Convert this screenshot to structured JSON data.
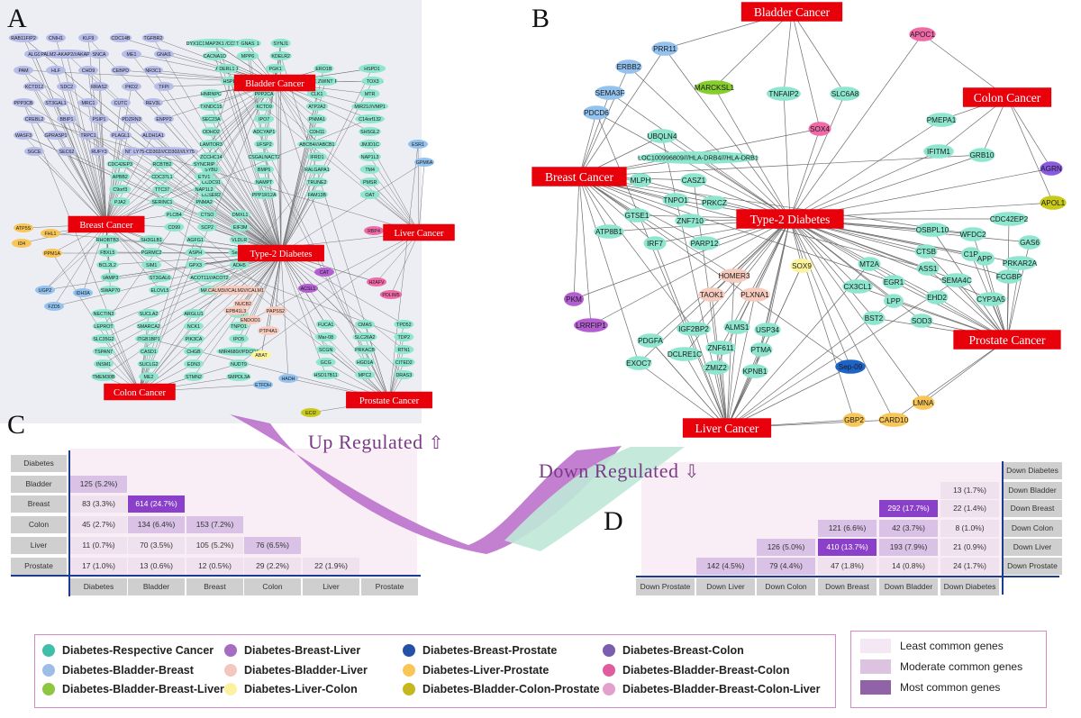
{
  "panels": {
    "a": "A",
    "b": "B",
    "c": "C",
    "d": "D"
  },
  "regulation": {
    "up": "Up Regulated",
    "down": "Down Regulated"
  },
  "colors": {
    "cancer_box": "#e8000b",
    "teal": "#8ee6cf",
    "lavender": "#b7bde8",
    "blue": "#93c2ef",
    "green": "#86cd2e",
    "purple": "#b45fd1",
    "pink": "#f06aa8",
    "peach": "#f7cbbe",
    "yellow": "#fdf39a",
    "orange": "#f7c657",
    "olive": "#c9c91a",
    "violet": "#8a5ae0",
    "darkblue": "#1d63c8"
  },
  "network_a": {
    "cancers": [
      "Bladder Cancer",
      "Breast Cancer",
      "Type-2 Diabetes",
      "Liver Cancer",
      "Colon Cancer",
      "Prostate Cancer"
    ],
    "genes_teal": [
      "DYX1C1-CCPG1///CCPG1",
      "TOR1AIP1",
      "EDI",
      "PAPOLA",
      "KLHL41",
      "NBEA",
      "ARHGEF9",
      "CPE",
      "CRY1",
      "C11orf58",
      "NFIL3",
      "FBXO3",
      "DCUN1D4",
      "ARMCX1",
      "CD200",
      "PPP2CA",
      "CLK1",
      "MTR",
      "TXNDC15",
      "KCTD9",
      "ATP2A2",
      "MIR21///VMP1",
      "SEC23A",
      "IPO7",
      "PNMA1",
      "C14orf132",
      "ODHO2",
      "ADCYAP1",
      "CDH11",
      "SHSGL2",
      "LAMTOR3",
      "UFSP2",
      "ABCB4///ABCB1",
      "JMJD1C",
      "ZCCHC14",
      "CSGALNACT2",
      "IFRD1",
      "NAP1L3",
      "SYBU",
      "BMP5",
      "RALGAPA1",
      "TM4",
      "CCDC91",
      "NAMPT",
      "TRUNE2",
      "PMSR",
      "CCSER2",
      "PPP1R12A",
      "FAM13B",
      "OAT",
      "CDC42EP3",
      "RCBTB2",
      "SYNCRIP",
      "APBB2",
      "CDC37L1",
      "ETV1",
      "C9orf3",
      "TTC37",
      "NAP1L2",
      "PJA2",
      "SERINC1",
      "PNMA2",
      "PLCB4",
      "CTSO",
      "DMXL1",
      "CD99",
      "SCP2",
      "EIF3M",
      "RHOBTB3",
      "SH3GLB1",
      "AGFG1",
      "VLDLR",
      "FBXL5",
      "PGRMC2",
      "ASPH",
      "Sep-10",
      "BCL2L2",
      "SIM1",
      "GPX3",
      "ADH5",
      "VAMP3",
      "ST3GAL6",
      "ACOT11///ACOT2",
      "SWAP70",
      "ELOVL5",
      "MANIA1",
      "NECTIN3",
      "SUCLA2",
      "ARGLU1",
      "NEK7",
      "LEPROT",
      "SMARCA2",
      "NCK1",
      "TNPO1",
      "SLC35G2",
      "ITGB1BP1",
      "PIK3CA",
      "IPO5",
      "TSPAN7",
      "CASD1",
      "CHGB",
      "MIR4680///PDCD4",
      "INSM1",
      "SUCLG2",
      "EDN3",
      "NUDT9",
      "TMEM30B",
      "ME2",
      "STMN2",
      "SMPDL3A",
      "FUCA1",
      "CMAS",
      "TPD52",
      "Mar-08",
      "SLC26A2",
      "TDP2",
      "SCGN",
      "PRKACB",
      "RTN1",
      "GCG",
      "HGD1A",
      "CITED2",
      "HSD17B11",
      "MPC2",
      "DRAS3",
      "MAP2K1",
      "GNAS",
      "SYNJ1",
      "CACNA1D",
      "MPP6",
      "KDELR2",
      "DERL1",
      "PGK1",
      "ERO1B",
      "HSPD1",
      "HSPE1",
      "OGT",
      "ZWINT",
      "TOX3",
      "HNRNPC"
    ],
    "genes_lavender": [
      "RAB11FIP2",
      "CNIH1",
      "KLF9",
      "CDC14B",
      "TGFBR2",
      "ALG9",
      "PALM2-AKAP2///AKAP2",
      "SNCA",
      "ME1",
      "GNAI1",
      "PAM",
      "HLF",
      "CHD9",
      "CEBPD",
      "NR3C1",
      "KCTD12",
      "SDC2",
      "RRAS2",
      "PKD2",
      "TFPI",
      "PPP3CB",
      "ST3GAL1",
      "MRC1",
      "CUTC",
      "REV3L",
      "CREBL2",
      "BBIP1",
      "PSIP1",
      "PDZRN3",
      "ENPP2",
      "WASF3",
      "GPRASP1",
      "TRPC1",
      "PLAGL1",
      "ALDH1A1",
      "SGCE",
      "SEC62",
      "RUFY3",
      "NRP1",
      "LY75-CD302///CD302///LY75"
    ],
    "genes_blue": [
      "UGP2",
      "IDH3A",
      "FZD5",
      "ETFDH",
      "HADH",
      "ESR1",
      "GPM6A"
    ],
    "genes_orange": [
      "ATP5S",
      "FHL1",
      "ID4",
      "PPM1A"
    ],
    "genes_peach": [
      "CALM3///CALM2///CALM1",
      "NUCB2",
      "EPB41L3",
      "PAPSS2",
      "ENDOD1",
      "PTP4A1"
    ],
    "genes_purple": [
      "CAT",
      "ACSL1"
    ],
    "genes_pink": [
      "RBP4",
      "H2AFV",
      "PDLIM5"
    ],
    "genes_yellow": [
      "ABAT"
    ],
    "genes_olive": [
      "ECI2"
    ]
  },
  "network_b": {
    "cancers": [
      "Bladder Cancer",
      "Colon Cancer",
      "Breast Cancer",
      "Type-2 Diabetes",
      "Prostate Cancer",
      "Liver Cancer"
    ],
    "genes": {
      "blue": [
        "PRR11",
        "ERBB2",
        "SEMA3F",
        "PDCD6"
      ],
      "green": [
        "MARCKSL1"
      ],
      "pink": [
        "APOC1",
        "SOX4"
      ],
      "teal": [
        "TNFAIP2",
        "SLC6A8",
        "UBQLN4",
        "PMEPA1",
        "IFITM1",
        "GRB10",
        "LOC100996809///HLA-DRB4///HLA-DRB1",
        "MLPH",
        "CASZ1",
        "TNPO1",
        "PRKCZ",
        "GTSE1",
        "ZNF710",
        "ATP8B1",
        "IRF7",
        "PARP12",
        "OSBPL10",
        "WFDC2",
        "CDC42EP2",
        "GAS6",
        "MT2A",
        "CTSB",
        "C1R",
        "ASS1",
        "APP",
        "PRKAR2A",
        "SEMA4C",
        "FCGBP",
        "CX3CL1",
        "EGR1",
        "EHD2",
        "CYP3A5",
        "LPP",
        "BST2",
        "SOD3",
        "IGF2BP2",
        "ALMS1",
        "USP34",
        "PDGFA",
        "ZNF611",
        "PTMA",
        "EXOC7",
        "DCLRE1C",
        "ZMIZ2",
        "KPNB1"
      ],
      "violet": [
        "AGRN"
      ],
      "olive": [
        "APOL1"
      ],
      "peach": [
        "HOMER3",
        "TAOK1",
        "PLXNA1"
      ],
      "yellow": [
        "SOX9"
      ],
      "purple": [
        "PKM",
        "LRRFIP1"
      ],
      "darkblue": [
        "Sep-09"
      ],
      "orange": [
        "LMNA",
        "GBP2",
        "CARD10"
      ]
    }
  },
  "heatmap_c": {
    "rows": [
      "Diabetes",
      "Bladder",
      "Breast",
      "Colon",
      "Liver",
      "Prostate"
    ],
    "cols": [
      "Diabetes",
      "Bladder",
      "Breast",
      "Colon",
      "Liver",
      "Prostate"
    ],
    "cells": [
      [],
      [
        "125 (5.2%)"
      ],
      [
        "83 (3.3%)",
        "614 (24.7%)"
      ],
      [
        "45 (2.7%)",
        "134 (6.4%)",
        "153 (7.2%)"
      ],
      [
        "11 (0.7%)",
        "70 (3.5%)",
        "105 (5.2%)",
        "76 (6.5%)"
      ],
      [
        "17 (1.0%)",
        "13 (0.6%)",
        "12 (0.5%)",
        "29 (2.2%)",
        "22 (1.9%)"
      ]
    ],
    "levels": [
      [],
      [
        2
      ],
      [
        1,
        3
      ],
      [
        1,
        2,
        2
      ],
      [
        1,
        1,
        1,
        2
      ],
      [
        1,
        1,
        1,
        1,
        1
      ]
    ]
  },
  "heatmap_d": {
    "rows": [
      "Down Diabetes",
      "Down Bladder",
      "Down Breast",
      "Down Colon",
      "Down Liver",
      "Down Prostate"
    ],
    "cols": [
      "Down Prostate",
      "Down Liver",
      "Down Colon",
      "Down Breast",
      "Down Bladder",
      "Down Diabetes"
    ],
    "cells": [
      [],
      [
        "13 (1.7%)"
      ],
      [
        "292 (17.7%)",
        "22 (1.4%)"
      ],
      [
        "121 (6.6%)",
        "42 (3.7%)",
        "8 (1.0%)"
      ],
      [
        "126 (5.0%)",
        "410 (13.7%)",
        "193 (7.9%)",
        "21 (0.9%)"
      ],
      [
        "142 (4.5%)",
        "79 (4.4%)",
        "47 (1.8%)",
        "14 (0.8%)",
        "24 (1.7%)"
      ]
    ],
    "levels": [
      [],
      [
        1
      ],
      [
        3,
        1
      ],
      [
        2,
        2,
        1
      ],
      [
        2,
        3,
        2,
        1
      ],
      [
        2,
        2,
        1,
        1,
        1
      ]
    ]
  },
  "legend": {
    "items": [
      {
        "label": "Diabetes-Respective Cancer",
        "color": "#3fbfa9"
      },
      {
        "label": "Diabetes-Breast-Liver",
        "color": "#a56cc1"
      },
      {
        "label": "Diabetes-Breast-Prostate",
        "color": "#2450a8"
      },
      {
        "label": "Diabetes-Breast-Colon",
        "color": "#7a5cb0"
      },
      {
        "label": "Diabetes-Bladder-Breast",
        "color": "#9dbde8"
      },
      {
        "label": "Diabetes-Bladder-Liver",
        "color": "#f3c7bd"
      },
      {
        "label": "Diabetes-Liver-Prostate",
        "color": "#f7c657"
      },
      {
        "label": "Diabetes-Bladder-Breast-Colon",
        "color": "#e05c9e"
      },
      {
        "label": "Diabetes-Bladder-Breast-Liver",
        "color": "#8dc63f"
      },
      {
        "label": "Diabetes-Liver-Colon",
        "color": "#fdf0a0"
      },
      {
        "label": "Diabetes-Bladder-Colon-Prostate",
        "color": "#c6b81c"
      },
      {
        "label": "Diabetes-Bladder-Breast-Colon-Liver",
        "color": "#e3a0cc"
      }
    ],
    "scale": [
      {
        "label": "Least common genes",
        "color": "#f3e8f3"
      },
      {
        "label": "Moderate common genes",
        "color": "#dcc3e0"
      },
      {
        "label": "Most common genes",
        "color": "#9062a8"
      }
    ]
  }
}
